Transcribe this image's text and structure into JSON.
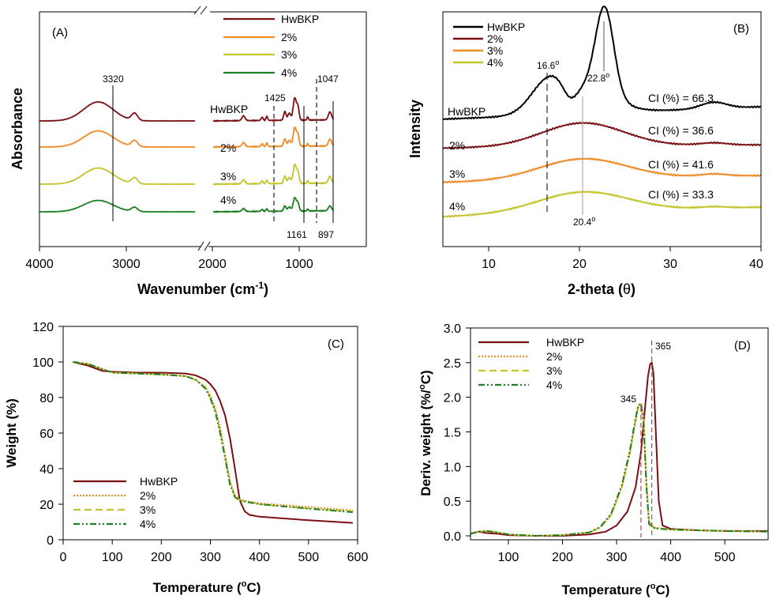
{
  "colors": {
    "hwbkp": "#7a1013",
    "hwbkp_b": "#000000",
    "p2": "#f08a24",
    "p3": "#c4c42a",
    "p4": "#1d7f24"
  },
  "panels": {
    "A": {
      "tag": "(A)",
      "xlabel_main": "Wavenumber (cm",
      "xlabel_sup": "-1",
      "xlabel_close": ")",
      "ylabel": "Absorbance",
      "xticks": [
        "4000",
        "3000",
        "2000",
        "1000"
      ],
      "row_labels": [
        "HwBKP",
        "2%",
        "3%",
        "4%"
      ],
      "peak_labels": [
        "3320",
        "1425",
        "1047",
        "1161",
        "897"
      ]
    },
    "B": {
      "tag": "(B)",
      "xlabel_main": "2-theta (",
      "xlabel_theta": "θ",
      "xlabel_close": ")",
      "ylabel": "Intensity",
      "xticks": [
        "10",
        "20",
        "30",
        "40"
      ],
      "row_labels": [
        "HwBKP",
        "2%",
        "3%",
        "4%"
      ],
      "ci_labels": [
        "CI (%) = 66.3",
        "CI (%) = 36.6",
        "CI (%) = 41.6",
        "CI (%) = 33.3"
      ],
      "peak_labels": [
        "16.6",
        "22.8",
        "20.4"
      ],
      "degree": "o"
    },
    "C": {
      "tag": "(C)",
      "xlabel_main": "Temperature (",
      "xlabel_sup": "o",
      "xlabel_close": "C)",
      "ylabel": "Weight (%)",
      "xticks": [
        "0",
        "100",
        "200",
        "300",
        "400",
        "500",
        "600"
      ],
      "yticks": [
        "0",
        "20",
        "40",
        "60",
        "80",
        "100",
        "120"
      ]
    },
    "D": {
      "tag": "(D)",
      "xlabel_main": "Temperature (",
      "xlabel_sup": "o",
      "xlabel_close": "C)",
      "ylabel_main": "Deriv. weight (%/",
      "ylabel_sup": "o",
      "ylabel_close": "C)",
      "xticks": [
        "100",
        "200",
        "300",
        "400",
        "500"
      ],
      "yticks": [
        "0.0",
        "0.5",
        "1.0",
        "1.5",
        "2.0",
        "2.5",
        "3.0"
      ],
      "peak_labels": [
        "345",
        "365"
      ]
    }
  },
  "chart_data": [
    {
      "panel": "A",
      "type": "line",
      "title": "",
      "xlabel": "Wavenumber (cm-1)",
      "ylabel": "Absorbance",
      "xlim": [
        4000,
        600
      ],
      "axis_break": [
        2200,
        2000
      ],
      "legend": [
        "HwBKP",
        "2%",
        "3%",
        "4%"
      ],
      "legend_position": "top-center",
      "peaks": [
        3320,
        1425,
        1161,
        1047,
        897
      ],
      "series": [
        {
          "name": "HwBKP",
          "offset": 3.0,
          "amplitude": 1.0
        },
        {
          "name": "2%",
          "offset": 2.0,
          "amplitude": 0.85
        },
        {
          "name": "3%",
          "offset": 1.0,
          "amplitude": 0.85
        },
        {
          "name": "4%",
          "offset": 0.0,
          "amplitude": 0.6
        }
      ]
    },
    {
      "panel": "B",
      "type": "line",
      "title": "",
      "xlabel": "2-theta (θ)",
      "ylabel": "Intensity",
      "xlim": [
        5,
        40
      ],
      "legend": [
        "HwBKP",
        "2%",
        "3%",
        "4%"
      ],
      "legend_position": "top-left",
      "peaks": [
        16.6,
        22.8,
        20.4
      ],
      "series": [
        {
          "name": "HwBKP",
          "crystallinity_index": 66.3,
          "peak_2theta": [
            16.6,
            22.8
          ]
        },
        {
          "name": "2%",
          "crystallinity_index": 36.6,
          "peak_2theta": [
            20.4
          ]
        },
        {
          "name": "3%",
          "crystallinity_index": 41.6,
          "peak_2theta": [
            20.4
          ]
        },
        {
          "name": "4%",
          "crystallinity_index": 33.3,
          "peak_2theta": [
            20.4
          ]
        }
      ]
    },
    {
      "panel": "C",
      "type": "line",
      "title": "",
      "xlabel": "Temperature (oC)",
      "ylabel": "Weight (%)",
      "xlim": [
        0,
        600
      ],
      "ylim": [
        0,
        120
      ],
      "legend": [
        "HwBKP",
        "2%",
        "3%",
        "4%"
      ],
      "legend_position": "bottom-left",
      "series": [
        {
          "name": "HwBKP",
          "x": [
            20,
            50,
            80,
            100,
            150,
            200,
            250,
            270,
            290,
            300,
            310,
            320,
            330,
            340,
            350,
            360,
            370,
            380,
            400,
            500,
            590
          ],
          "y": [
            100,
            98,
            95,
            94.5,
            94,
            94,
            93.5,
            92.5,
            90,
            87.5,
            84,
            78,
            70,
            57,
            40,
            22,
            16,
            14,
            13,
            11,
            9.5
          ]
        },
        {
          "name": "2%",
          "x": [
            20,
            50,
            80,
            100,
            150,
            200,
            250,
            270,
            290,
            300,
            310,
            320,
            330,
            340,
            350,
            360,
            380,
            400,
            500,
            590
          ],
          "y": [
            100,
            99,
            96,
            94,
            93.5,
            93,
            92,
            90,
            86,
            81,
            74,
            63,
            48,
            33,
            25,
            22.5,
            21.5,
            20.5,
            18.5,
            16.5
          ]
        },
        {
          "name": "3%",
          "x": [
            20,
            50,
            80,
            100,
            150,
            200,
            250,
            270,
            290,
            300,
            310,
            320,
            330,
            340,
            350,
            360,
            380,
            400,
            500,
            590
          ],
          "y": [
            100,
            99,
            96,
            94,
            93.5,
            93,
            92,
            90,
            85.5,
            80,
            72.5,
            61,
            47,
            32,
            24.5,
            22,
            21,
            20,
            17.5,
            16
          ]
        },
        {
          "name": "4%",
          "x": [
            20,
            50,
            80,
            100,
            150,
            200,
            250,
            270,
            290,
            300,
            310,
            320,
            330,
            340,
            350,
            360,
            380,
            400,
            500,
            590
          ],
          "y": [
            100,
            99,
            96,
            94,
            93.5,
            93,
            92,
            90,
            85,
            79.5,
            72,
            60,
            46,
            31,
            24,
            22,
            21,
            20,
            17.5,
            15.5
          ]
        }
      ]
    },
    {
      "panel": "D",
      "type": "line",
      "title": "",
      "xlabel": "Temperature (oC)",
      "ylabel": "Deriv. weight (%/oC)",
      "xlim": [
        30,
        580
      ],
      "ylim": [
        0,
        3
      ],
      "legend": [
        "HwBKP",
        "2%",
        "3%",
        "4%"
      ],
      "legend_position": "top-left",
      "peaks": [
        345,
        365
      ],
      "series": [
        {
          "name": "HwBKP",
          "x": [
            30,
            45,
            60,
            80,
            100,
            150,
            200,
            250,
            280,
            300,
            320,
            335,
            345,
            352,
            358,
            362,
            365,
            368,
            372,
            378,
            385,
            400,
            450,
            500,
            580
          ],
          "y": [
            0.03,
            0.06,
            0.04,
            0.03,
            0.01,
            0.0,
            0.0,
            0.02,
            0.06,
            0.15,
            0.35,
            0.7,
            1.2,
            1.8,
            2.3,
            2.48,
            2.5,
            2.35,
            1.6,
            0.5,
            0.15,
            0.1,
            0.08,
            0.07,
            0.07
          ]
        },
        {
          "name": "2%",
          "x": [
            30,
            45,
            60,
            80,
            100,
            150,
            200,
            250,
            270,
            290,
            310,
            325,
            335,
            340,
            345,
            350,
            355,
            360,
            370,
            400,
            450,
            500,
            580
          ],
          "y": [
            0.03,
            0.06,
            0.07,
            0.05,
            0.02,
            0.0,
            0.01,
            0.05,
            0.12,
            0.3,
            0.7,
            1.2,
            1.65,
            1.85,
            1.92,
            1.7,
            0.8,
            0.2,
            0.12,
            0.09,
            0.08,
            0.07,
            0.06
          ]
        },
        {
          "name": "3%",
          "x": [
            30,
            45,
            60,
            80,
            100,
            150,
            200,
            250,
            270,
            290,
            310,
            325,
            335,
            340,
            345,
            350,
            355,
            360,
            370,
            400,
            450,
            500,
            580
          ],
          "y": [
            0.03,
            0.06,
            0.07,
            0.05,
            0.02,
            0.0,
            0.01,
            0.05,
            0.12,
            0.3,
            0.72,
            1.22,
            1.68,
            1.87,
            1.9,
            1.66,
            0.75,
            0.18,
            0.11,
            0.09,
            0.08,
            0.07,
            0.06
          ]
        },
        {
          "name": "4%",
          "x": [
            30,
            45,
            60,
            80,
            100,
            150,
            200,
            250,
            270,
            290,
            310,
            325,
            335,
            340,
            345,
            350,
            355,
            360,
            370,
            400,
            450,
            500,
            580
          ],
          "y": [
            0.03,
            0.06,
            0.07,
            0.05,
            0.02,
            0.0,
            0.01,
            0.05,
            0.13,
            0.32,
            0.74,
            1.25,
            1.7,
            1.88,
            1.91,
            1.64,
            0.72,
            0.17,
            0.11,
            0.09,
            0.08,
            0.07,
            0.06
          ]
        }
      ]
    }
  ]
}
